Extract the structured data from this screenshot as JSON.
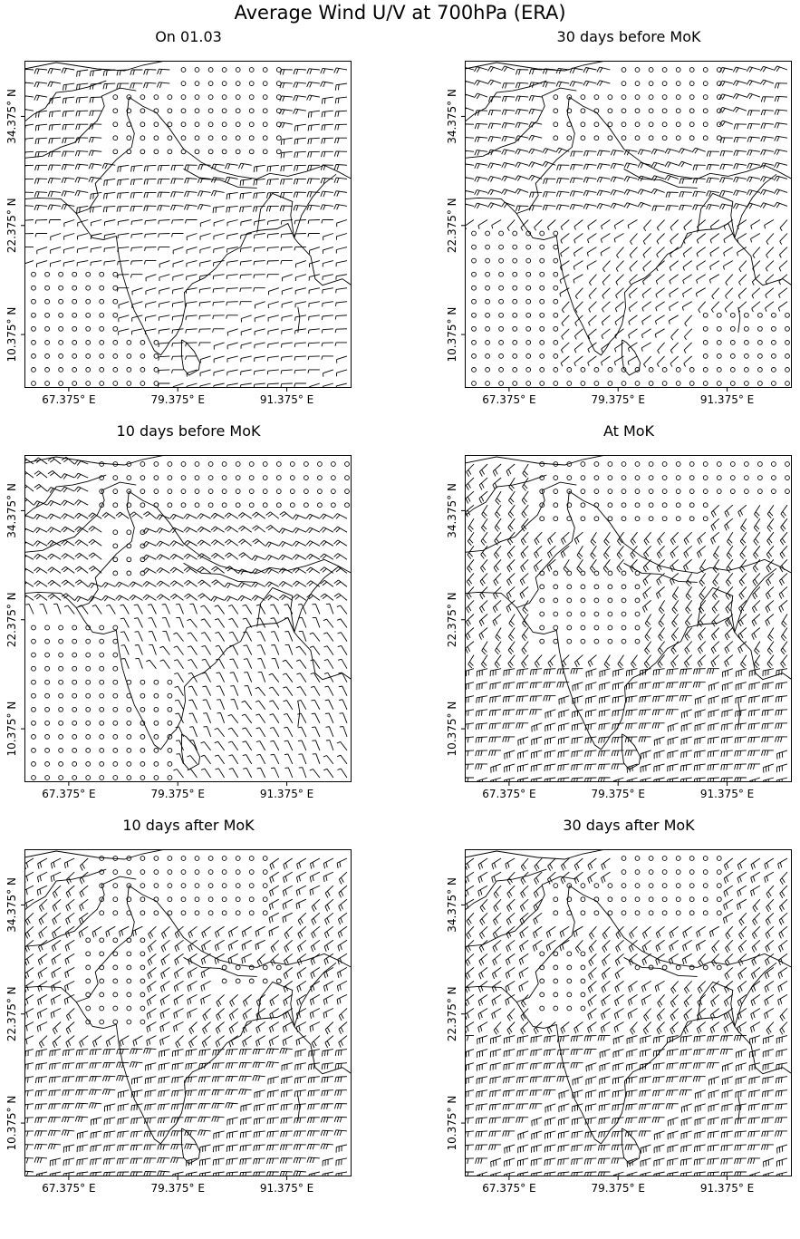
{
  "figure": {
    "title": "Average Wind U/V at 700hPa (ERA)"
  },
  "axes_common": {
    "x_ticks": [
      "67.375° E",
      "79.375° E",
      "91.375° E"
    ],
    "y_ticks": [
      "34.375° N",
      "22.375° N",
      "10.375° N"
    ]
  },
  "chart_data": [
    {
      "type": "barbs",
      "title": "On 01.03",
      "x_ticks": [
        "67.375° E",
        "79.375° E",
        "91.375° E"
      ],
      "y_ticks": [
        "34.375° N",
        "22.375° N",
        "10.375° N"
      ],
      "xlim_deg_e": [
        62.5,
        98.5
      ],
      "ylim_deg_n": [
        4.5,
        40.5
      ],
      "grid": false,
      "flow_regime": "westerly north and south, calm circles over south-west Arabian Sea and Tibet"
    },
    {
      "type": "barbs",
      "title": "30 days before MoK",
      "x_ticks": [
        "67.375° E",
        "79.375° E",
        "91.375° E"
      ],
      "y_ticks": [
        "34.375° N",
        "22.375° N",
        "10.375° N"
      ],
      "xlim_deg_e": [
        62.5,
        98.5
      ],
      "ylim_deg_n": [
        4.5,
        40.5
      ],
      "grid": false,
      "flow_regime": "westerly, calm circles over western Arabian Sea and Bay of Bengal"
    },
    {
      "type": "barbs",
      "title": "10 days before MoK",
      "x_ticks": [
        "67.375° E",
        "79.375° E",
        "91.375° E"
      ],
      "y_ticks": [
        "34.375° N",
        "22.375° N",
        "10.375° N"
      ],
      "xlim_deg_e": [
        62.5,
        98.5
      ],
      "ylim_deg_n": [
        4.5,
        40.5
      ],
      "grid": false,
      "flow_regime": "northwesterly over India, calm circles over Arabian Sea and Tibet"
    },
    {
      "type": "barbs",
      "title": "At MoK",
      "x_ticks": [
        "67.375° E",
        "79.375° E",
        "91.375° E"
      ],
      "y_ticks": [
        "34.375° N",
        "22.375° N",
        "10.375° N"
      ],
      "xlim_deg_e": [
        62.5,
        98.5
      ],
      "ylim_deg_n": [
        4.5,
        40.5
      ],
      "grid": false,
      "flow_regime": "westerly south of 20N, calm circles over central India and Tibet"
    },
    {
      "type": "barbs",
      "title": "10 days after MoK",
      "x_ticks": [
        "67.375° E",
        "79.375° E",
        "91.375° E"
      ],
      "y_ticks": [
        "34.375° N",
        "22.375° N",
        "10.375° N"
      ],
      "xlim_deg_e": [
        62.5,
        98.5
      ],
      "ylim_deg_n": [
        4.5,
        40.5
      ],
      "grid": false,
      "flow_regime": "monsoon westerlies south, calm circles over north-west India and Tibet"
    },
    {
      "type": "barbs",
      "title": "30 days after MoK",
      "x_ticks": [
        "67.375° E",
        "79.375° E",
        "91.375° E"
      ],
      "y_ticks": [
        "34.375° N",
        "22.375° N",
        "10.375° N"
      ],
      "xlim_deg_e": [
        62.5,
        98.5
      ],
      "ylim_deg_n": [
        4.5,
        40.5
      ],
      "grid": false,
      "flow_regime": "strong monsoon westerlies, calm circles over north India and Tibet"
    }
  ]
}
